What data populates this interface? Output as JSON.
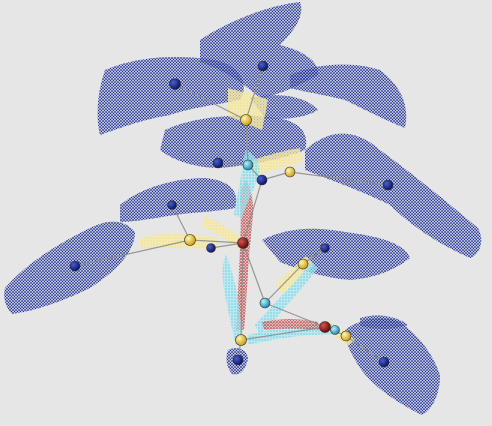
{
  "scene": {
    "background": "#e6e6e6",
    "colors": {
      "leaf_points": "#1a2f9e",
      "leaf_dark": "#0d1d6e",
      "leaf_node": "#0a1a78",
      "stem_red": "#b02020",
      "stem_cyan": "#5bd3ea",
      "petiole_yellow": "#f3e07a",
      "joint_yellow": "#f2c21a",
      "joint_cyan": "#1fb3d6",
      "joint_red": "#8a0f0f",
      "skeleton_line": "#9a9a9a"
    },
    "leaves": [
      {
        "id": "leaf-top-right"
      },
      {
        "id": "leaf-top-left"
      },
      {
        "id": "leaf-upper-right-wide"
      },
      {
        "id": "leaf-upper-center"
      },
      {
        "id": "leaf-right-long"
      },
      {
        "id": "leaf-middle-left"
      },
      {
        "id": "leaf-far-left"
      },
      {
        "id": "leaf-mid-right"
      },
      {
        "id": "leaf-lower-right"
      },
      {
        "id": "leaf-bottom-stub"
      }
    ]
  }
}
